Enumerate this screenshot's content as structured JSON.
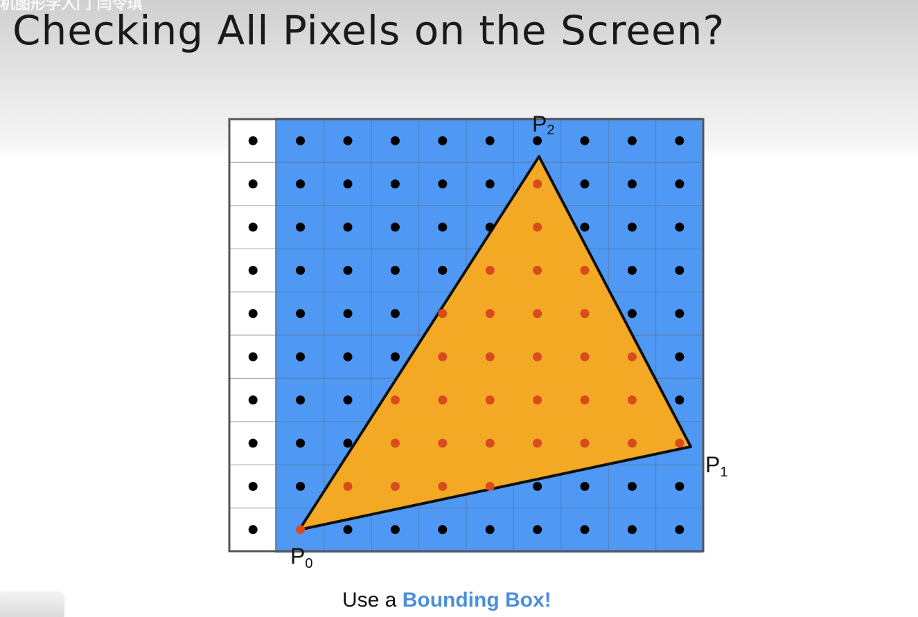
{
  "watermark": {
    "text": "机图形学入门 闫令琪"
  },
  "slide": {
    "title": "Checking All Pixels on the Screen?"
  },
  "diagram": {
    "grid_columns": 10,
    "grid_rows": 10,
    "bounding_box_color": "#4f99f5",
    "triangle_fill_color": "#f4a924",
    "inside_dot_color": "#d94a1f",
    "outside_dot_color": "#000000",
    "vertex_labels": {
      "p0": {
        "letter": "P",
        "sub": "0"
      },
      "p1": {
        "letter": "P",
        "sub": "1"
      },
      "p2": {
        "letter": "P",
        "sub": "2"
      }
    },
    "inside_samples": [
      [
        5,
        1
      ],
      [
        5,
        2
      ],
      [
        4,
        3
      ],
      [
        5,
        3
      ],
      [
        6,
        3
      ],
      [
        3,
        4
      ],
      [
        4,
        4
      ],
      [
        5,
        4
      ],
      [
        6,
        4
      ],
      [
        3,
        5
      ],
      [
        4,
        5
      ],
      [
        5,
        5
      ],
      [
        6,
        5
      ],
      [
        7,
        5
      ],
      [
        2,
        6
      ],
      [
        3,
        6
      ],
      [
        4,
        6
      ],
      [
        5,
        6
      ],
      [
        6,
        6
      ],
      [
        7,
        6
      ],
      [
        2,
        7
      ],
      [
        3,
        7
      ],
      [
        4,
        7
      ],
      [
        5,
        7
      ],
      [
        6,
        7
      ],
      [
        7,
        7
      ],
      [
        8,
        7
      ],
      [
        1,
        8
      ],
      [
        2,
        8
      ],
      [
        3,
        8
      ],
      [
        4,
        8
      ],
      [
        0,
        9
      ]
    ]
  },
  "caption": {
    "prefix": "Use a ",
    "highlight": "Bounding Box!"
  }
}
